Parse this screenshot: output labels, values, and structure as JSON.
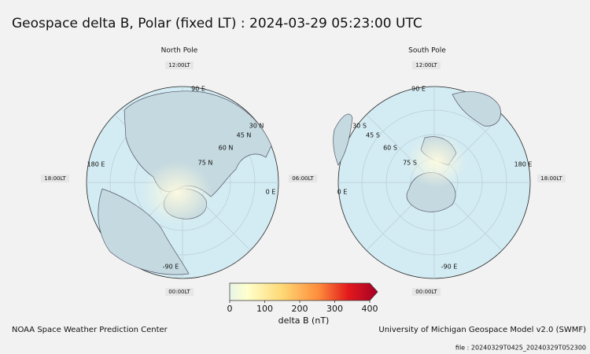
{
  "title": "Geospace delta B, Polar (fixed LT) : 2024-03-29  05:23:00 UTC",
  "north": {
    "title": "North Pole",
    "local_times": [
      "12:00LT",
      "06:00LT",
      "00:00LT",
      "18:00LT"
    ],
    "grid_labels": [
      "90 E",
      "30 N",
      "45 N",
      "60 N",
      "75 N",
      "180 E",
      "0 E",
      "-90 E"
    ]
  },
  "south": {
    "title": "South Pole",
    "local_times": [
      "12:00LT",
      "00:00LT",
      "18:00LT"
    ],
    "grid_labels": [
      "90 E",
      "30 S",
      "45 S",
      "60 S",
      "75 S",
      "180 E",
      "0 E",
      "-90 E"
    ]
  },
  "colorbar": {
    "label": "delta B (nT)",
    "lim": [
      0,
      400
    ],
    "ticks": [
      0,
      100,
      200,
      300,
      400
    ]
  },
  "footer": {
    "left": "NOAA Space Weather Prediction Center",
    "right": "University of Michigan Geospace Model v2.0 (SWMF)",
    "file": "file : 20240329T0425_20240329T052300"
  }
}
